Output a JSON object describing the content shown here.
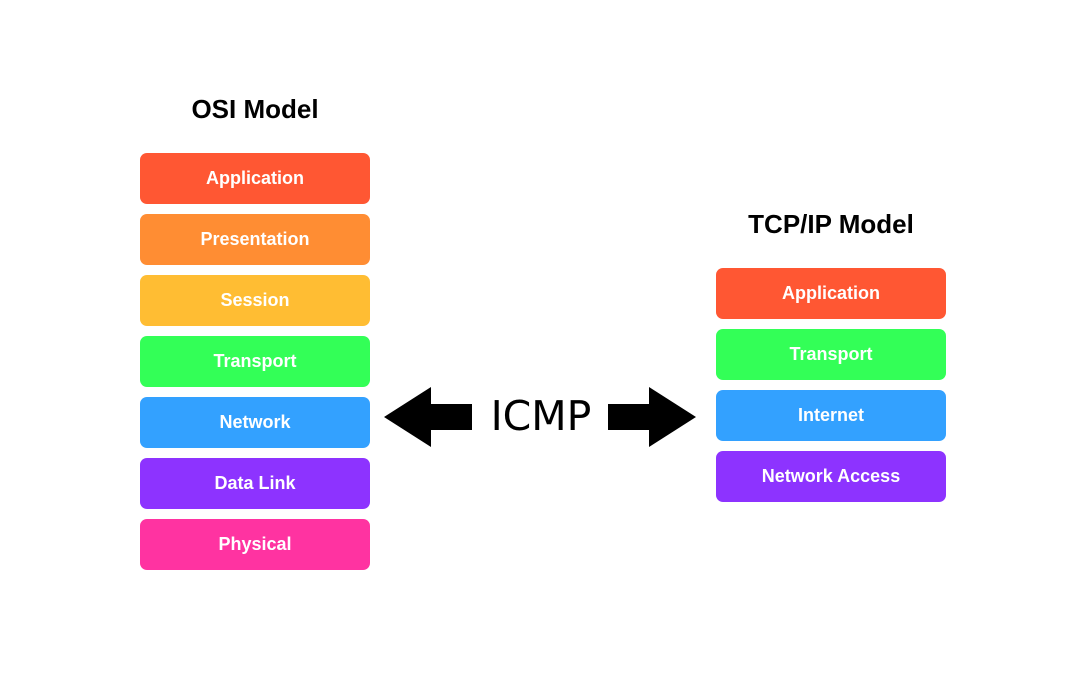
{
  "osi": {
    "title": "OSI Model",
    "layers": [
      {
        "label": "Application",
        "color": "#ff5733"
      },
      {
        "label": "Presentation",
        "color": "#ff8d33"
      },
      {
        "label": "Session",
        "color": "#ffbd33"
      },
      {
        "label": "Transport",
        "color": "#33ff57"
      },
      {
        "label": "Network",
        "color": "#33a1ff"
      },
      {
        "label": "Data Link",
        "color": "#8d33ff"
      },
      {
        "label": "Physical",
        "color": "#ff33a1"
      }
    ]
  },
  "tcpip": {
    "title": "TCP/IP Model",
    "layers": [
      {
        "label": "Application",
        "color": "#ff5733"
      },
      {
        "label": "Transport",
        "color": "#33ff57"
      },
      {
        "label": "Internet",
        "color": "#33a1ff"
      },
      {
        "label": "Network Access",
        "color": "#8d33ff"
      }
    ]
  },
  "connector": {
    "label": "ICMP",
    "icons": [
      "arrow-left-icon",
      "arrow-right-icon"
    ],
    "color": "#000000"
  }
}
